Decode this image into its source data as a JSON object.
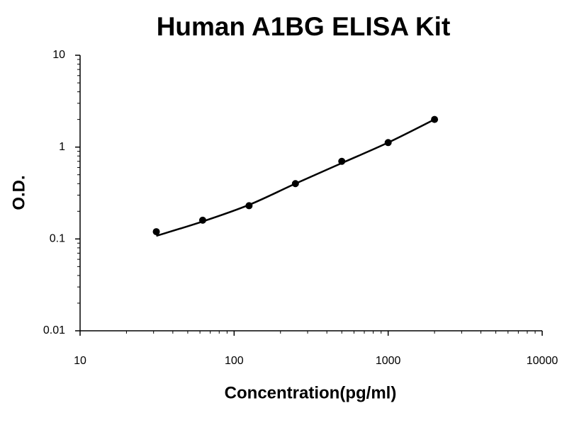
{
  "chart_data": {
    "type": "scatter",
    "title": "Human A1BG ELISA Kit",
    "x_label": "Concentration(pg/ml)",
    "y_label": "O.D.",
    "x": [
      31.25,
      62.5,
      125,
      250,
      500,
      1000,
      2000
    ],
    "series": [
      {
        "style": "marker",
        "color": "#000000",
        "values": [
          0.12,
          0.16,
          0.23,
          0.4,
          0.7,
          1.12,
          2.0
        ]
      },
      {
        "style": "smooth-line",
        "color": "#000000",
        "values": [
          0.108,
          0.155,
          0.235,
          0.4,
          0.67,
          1.12,
          2.0
        ]
      }
    ],
    "x_log": true,
    "y_log": true,
    "xlim": [
      10,
      10000
    ],
    "xticks": [
      10,
      100,
      1000,
      10000
    ],
    "ylim": [
      0.01,
      10
    ],
    "yticks": [
      0.01,
      0.1,
      1,
      10
    ],
    "grid": false,
    "minor_ticks": true
  }
}
